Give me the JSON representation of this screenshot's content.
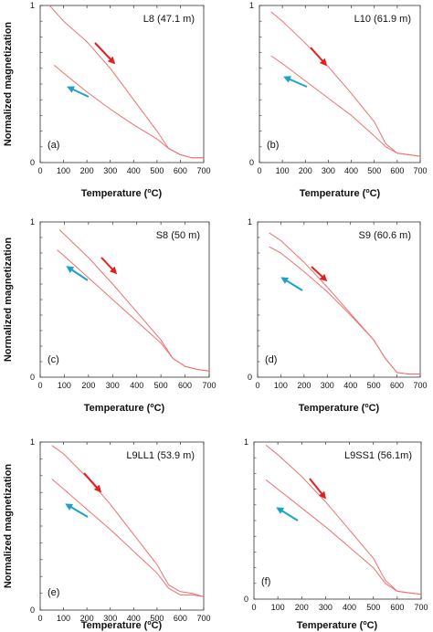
{
  "figure": {
    "ylabel": "Normalized magnetization",
    "xlabel": "Temperature (°C)",
    "xlabel_main": "Temperature (",
    "xlabel_degree": "o",
    "xlabel_unit": "C)"
  },
  "colors": {
    "curve": "#f07070",
    "heating_arrow": "#e51f1f",
    "cooling_arrow": "#1aa3c8"
  },
  "chart_data": [
    {
      "type": "line",
      "title": "L8 (47.1 m)",
      "panel": "(a)",
      "xlim": [
        0,
        700
      ],
      "ylim": [
        0,
        1
      ],
      "x_ticks": [
        "0",
        "100",
        "200",
        "300",
        "400",
        "500",
        "600",
        "700"
      ],
      "y_ticks": [
        "0",
        "1"
      ],
      "series": [
        {
          "x": [
            40,
            100,
            200,
            300,
            400,
            500,
            550,
            600,
            650,
            700
          ],
          "y": [
            1.0,
            0.9,
            0.77,
            0.6,
            0.4,
            0.2,
            0.09,
            0.05,
            0.03,
            0.03
          ]
        },
        {
          "x": [
            60,
            100,
            200,
            300,
            400,
            500,
            550,
            600,
            650,
            700
          ],
          "y": [
            0.62,
            0.57,
            0.45,
            0.34,
            0.24,
            0.15,
            0.09,
            0.05,
            0.03,
            0.03
          ]
        }
      ]
    },
    {
      "type": "line",
      "title": "L10 (61.9 m)",
      "panel": "(b)",
      "xlim": [
        0,
        700
      ],
      "ylim": [
        0,
        1
      ],
      "x_ticks": [
        "0",
        "100",
        "200",
        "300",
        "400",
        "500",
        "600",
        "700"
      ],
      "y_ticks": [
        "0",
        "1"
      ],
      "series": [
        {
          "x": [
            50,
            100,
            200,
            300,
            400,
            500,
            550,
            600,
            650,
            700
          ],
          "y": [
            0.96,
            0.9,
            0.76,
            0.61,
            0.44,
            0.26,
            0.12,
            0.06,
            0.05,
            0.04
          ]
        },
        {
          "x": [
            50,
            100,
            200,
            300,
            400,
            500,
            550,
            600,
            650,
            700
          ],
          "y": [
            0.68,
            0.63,
            0.52,
            0.41,
            0.3,
            0.17,
            0.1,
            0.06,
            0.05,
            0.04
          ]
        }
      ]
    },
    {
      "type": "line",
      "title": "S8 (50 m)",
      "panel": "(c)",
      "xlim": [
        0,
        700
      ],
      "ylim": [
        0,
        1
      ],
      "x_ticks": [
        "0",
        "100",
        "200",
        "300",
        "400",
        "500",
        "600",
        "700"
      ],
      "y_ticks": [
        "0",
        "1"
      ],
      "series": [
        {
          "x": [
            80,
            100,
            200,
            300,
            400,
            500,
            550,
            600,
            650,
            700
          ],
          "y": [
            0.95,
            0.92,
            0.77,
            0.6,
            0.42,
            0.24,
            0.12,
            0.07,
            0.05,
            0.04
          ]
        },
        {
          "x": [
            70,
            100,
            200,
            300,
            400,
            500,
            550,
            600,
            650,
            700
          ],
          "y": [
            0.82,
            0.78,
            0.64,
            0.5,
            0.36,
            0.22,
            0.12,
            0.07,
            0.05,
            0.04
          ]
        }
      ]
    },
    {
      "type": "line",
      "title": "S9 (60.6 m)",
      "panel": "(d)",
      "xlim": [
        0,
        700
      ],
      "ylim": [
        0,
        1
      ],
      "x_ticks": [
        "0",
        "100",
        "200",
        "300",
        "400",
        "500",
        "600",
        "700"
      ],
      "y_ticks": [
        "0",
        "1"
      ],
      "series": [
        {
          "x": [
            50,
            100,
            200,
            300,
            400,
            500,
            550,
            600,
            650,
            700
          ],
          "y": [
            0.93,
            0.88,
            0.74,
            0.58,
            0.41,
            0.24,
            0.12,
            0.03,
            0.02,
            0.02
          ]
        },
        {
          "x": [
            50,
            100,
            200,
            300,
            400,
            500,
            550,
            600,
            650,
            700
          ],
          "y": [
            0.84,
            0.8,
            0.68,
            0.55,
            0.4,
            0.24,
            0.12,
            0.03,
            0.02,
            0.02
          ]
        }
      ]
    },
    {
      "type": "line",
      "title": "L9LL1 (53.9 m)",
      "panel": "(e)",
      "xlim": [
        0,
        700
      ],
      "ylim": [
        0,
        1
      ],
      "x_ticks": [
        "0",
        "100",
        "200",
        "300",
        "400",
        "500",
        "600",
        "700"
      ],
      "y_ticks": [
        "0",
        "1"
      ],
      "series": [
        {
          "x": [
            50,
            100,
            200,
            300,
            400,
            500,
            550,
            600,
            650,
            700
          ],
          "y": [
            0.98,
            0.93,
            0.79,
            0.63,
            0.45,
            0.27,
            0.15,
            0.11,
            0.1,
            0.08
          ]
        },
        {
          "x": [
            50,
            100,
            200,
            300,
            400,
            500,
            550,
            600,
            650,
            700
          ],
          "y": [
            0.78,
            0.72,
            0.6,
            0.48,
            0.35,
            0.22,
            0.13,
            0.09,
            0.09,
            0.08
          ]
        }
      ]
    },
    {
      "type": "line",
      "title": "L9SS1 (56.1m)",
      "panel": "(f)",
      "xlim": [
        0,
        700
      ],
      "ylim": [
        0,
        1
      ],
      "x_ticks": [
        "0",
        "100",
        "200",
        "300",
        "400",
        "500",
        "600",
        "700"
      ],
      "y_ticks": [
        "0",
        "1"
      ],
      "series": [
        {
          "x": [
            50,
            100,
            200,
            300,
            400,
            500,
            550,
            600,
            650,
            700
          ],
          "y": [
            0.98,
            0.92,
            0.78,
            0.62,
            0.44,
            0.26,
            0.12,
            0.05,
            0.04,
            0.03
          ]
        },
        {
          "x": [
            50,
            100,
            200,
            300,
            400,
            500,
            550,
            600,
            650,
            700
          ],
          "y": [
            0.76,
            0.7,
            0.58,
            0.46,
            0.33,
            0.2,
            0.1,
            0.05,
            0.04,
            0.03
          ]
        }
      ]
    }
  ]
}
